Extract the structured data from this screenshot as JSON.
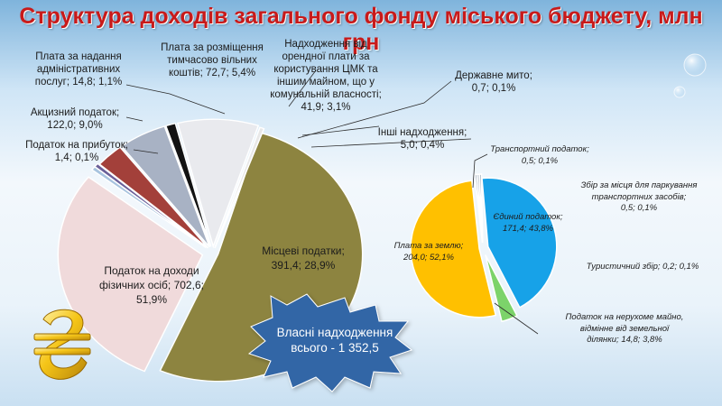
{
  "title": "Структура доходів загального фонду міського бюджету, млн грн",
  "colors": {
    "pdfo": "#8d8440",
    "misc": "#f0dadb",
    "inshi": "#a8c4df",
    "ministry": "#c7c0d4",
    "dmyto": "#6a5f98",
    "orenda": "#a3403a",
    "rozmishch": "#a8b2c4",
    "blacksl": "#121212",
    "adm": "#e8e8e8",
    "akcyz": "#e9eaee",
    "zemlya": "#ffc000",
    "yedynyi": "#17a2e8",
    "neruhome": "#7cd36a",
    "transport": "#9aaab8",
    "badge": "#3366a6"
  },
  "badge": {
    "line1": "Власні надходження",
    "line2": "всього - 1 352,5"
  },
  "chart_data": [
    {
      "type": "pie",
      "slices": [
        {
          "name": "Податок на доходи фізичних осіб",
          "value": 702.6,
          "percent": 51.9,
          "label": [
            "Податок на доходи",
            "фізичних осіб; 702,6;",
            "51,9%"
          ]
        },
        {
          "name": "Місцеві податки",
          "value": 391.4,
          "percent": 28.9,
          "label": [
            "Місцеві податки;",
            "391,4; 28,9%"
          ]
        },
        {
          "name": "Інші надходження",
          "value": 5.0,
          "percent": 0.4,
          "label": [
            "Інші надходження;",
            "5,0; 0,4%"
          ]
        },
        {
          "name": "Державне мито",
          "value": 0.7,
          "percent": 0.1,
          "label": [
            "Державне мито;",
            "0,7; 0,1%"
          ]
        },
        {
          "name": "Надходження від орендної плати за користування ЦМК та іншим майном, що у комунальній власності",
          "value": 41.9,
          "percent": 3.1,
          "label": [
            "Надходження від",
            "орендної плати за",
            "користування ЦМК та",
            "іншим майном, що у",
            "комунальній власності;",
            "41,9; 3,1%"
          ]
        },
        {
          "name": "Плата за розміщення тимчасово вільних коштів",
          "value": 72.7,
          "percent": 5.4,
          "label": [
            "Плата за розміщення",
            "тимчасово вільних",
            "коштів; 72,7; 5,4%"
          ]
        },
        {
          "name": "Плата за надання адміністративних послуг",
          "value": 14.8,
          "percent": 1.1,
          "label": [
            "Плата за надання",
            "адміністративних",
            "послуг; 14,8; 1,1%"
          ]
        },
        {
          "name": "Акцизний податок",
          "value": 122.0,
          "percent": 9.0,
          "label": [
            "Акцизний податок;",
            "122,0; 9,0%"
          ]
        },
        {
          "name": "Податок на прибуток",
          "value": 1.4,
          "percent": 0.1,
          "label": [
            "Податок на прибуток;",
            "1,4; 0,1%"
          ]
        }
      ]
    },
    {
      "type": "pie",
      "slices": [
        {
          "name": "Єдиний податок",
          "value": 171.4,
          "percent": 43.8,
          "label": [
            "Єдиний податок;",
            "171,4; 43,8%"
          ]
        },
        {
          "name": "Податок на нерухоме майно, відмінне від земельної ділянки",
          "value": 14.8,
          "percent": 3.8,
          "label": [
            "Податок на нерухоме майно,",
            "відмінне від земельної",
            "ділянки; 14,8; 3,8%"
          ]
        },
        {
          "name": "Плата за землю",
          "value": 204.0,
          "percent": 52.1,
          "label": [
            "Плата за землю;",
            "204,0; 52,1%"
          ]
        },
        {
          "name": "Туристичний збір",
          "value": 0.2,
          "percent": 0.1,
          "label": [
            "Туристичний збір; 0,2; 0,1%"
          ]
        },
        {
          "name": "Збір за місця для паркування транспортних засобів",
          "value": 0.5,
          "percent": 0.1,
          "label": [
            "Збір за місця для паркування",
            "транспортних засобів;",
            "0,5; 0,1%"
          ]
        },
        {
          "name": "Транспортний податок",
          "value": 0.5,
          "percent": 0.1,
          "label": [
            "Транспортний податок;",
            "0,5; 0,1%"
          ]
        }
      ]
    }
  ]
}
